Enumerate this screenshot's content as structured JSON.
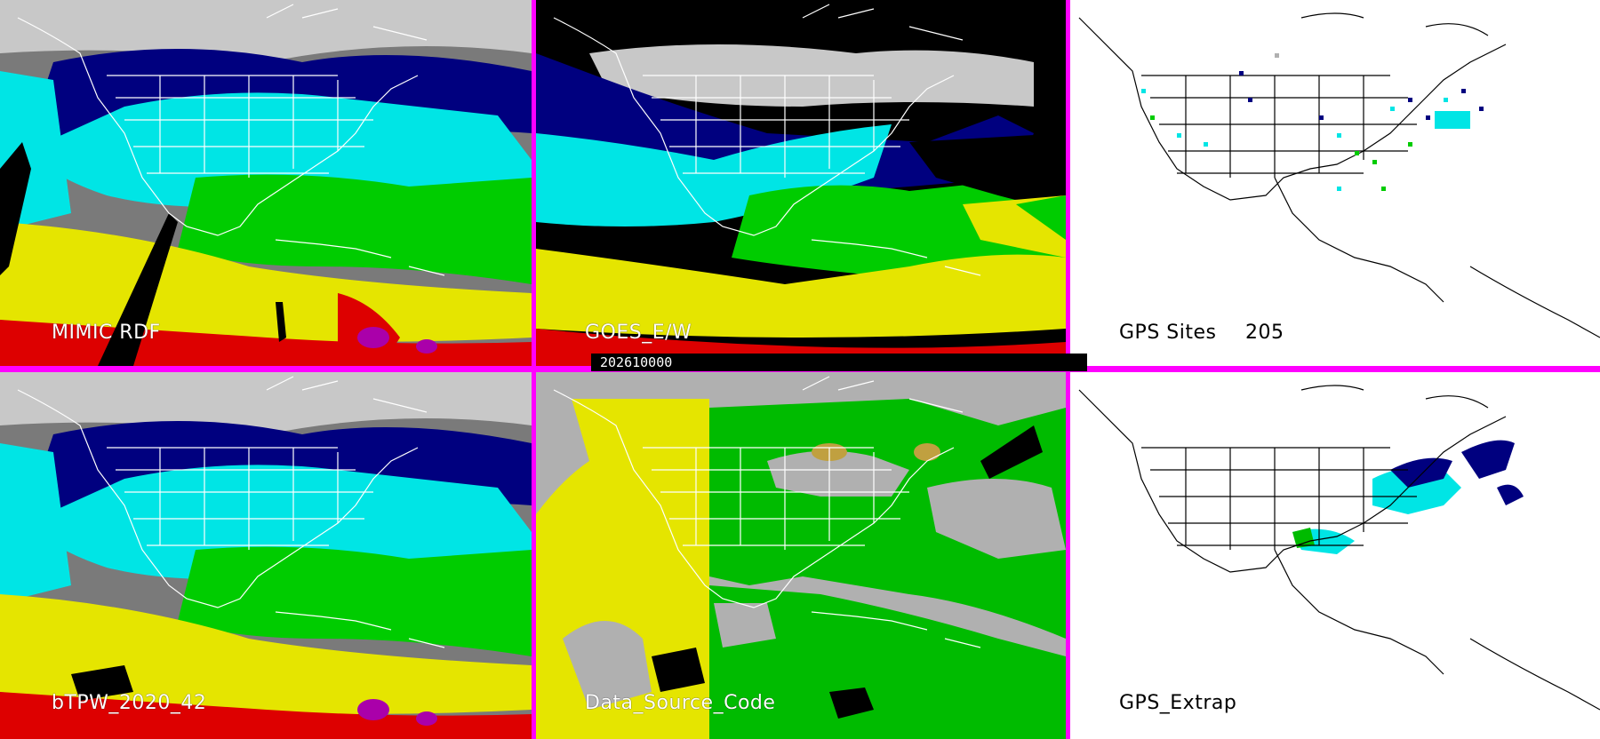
{
  "panels": {
    "mimic": {
      "label": "MIMIC RDF"
    },
    "goes": {
      "label": "GOES_E/W"
    },
    "gps_sites": {
      "label": "GPS Sites",
      "count": "205"
    },
    "btpw": {
      "label": "bTPW_2020_42"
    },
    "data_source": {
      "label": "Data_Source_Code"
    },
    "gps_extrap": {
      "label": "GPS_Extrap"
    }
  },
  "timestamp": "202610000",
  "colors": {
    "border": "#ff00ff",
    "very_dry": "#808080",
    "dry": "#00007f",
    "moist": "#00e5e5",
    "wet": "#00cc00",
    "very_wet": "#e5e500",
    "saturated": "#dd0000",
    "extreme": "#aa00aa",
    "source_a": "#e5e500",
    "source_b": "#00bb00",
    "source_none": "#b0b0b0"
  }
}
